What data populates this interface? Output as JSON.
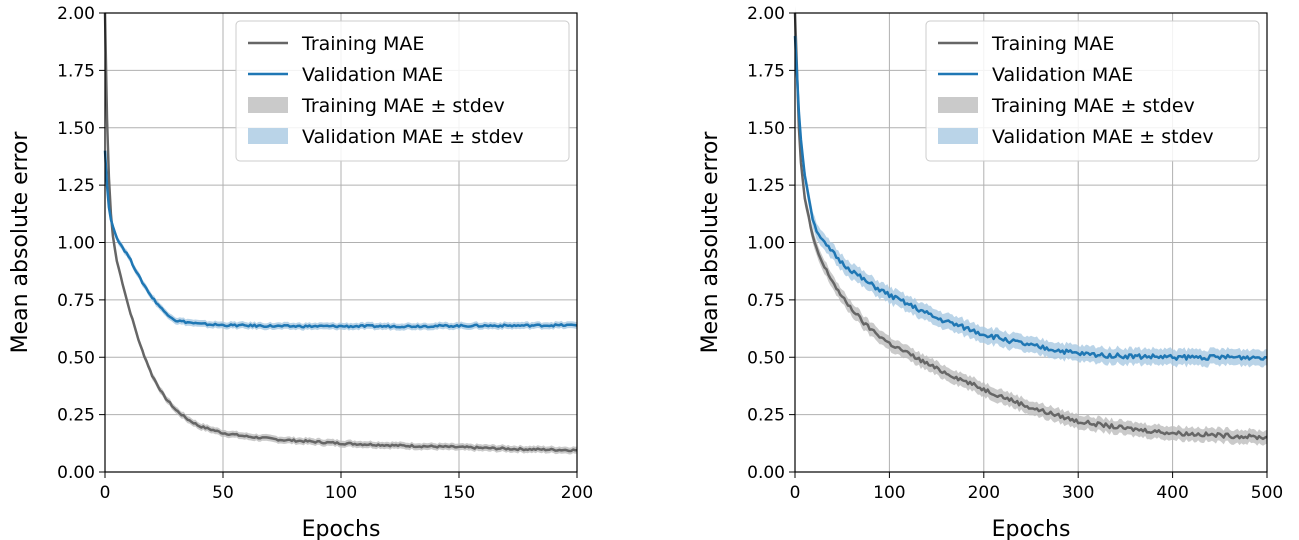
{
  "chart_data": [
    {
      "type": "line",
      "xlabel": "Epochs",
      "ylabel": "Mean absolute error",
      "xlim": [
        0,
        200
      ],
      "ylim": [
        0,
        2.0
      ],
      "xticks": [
        "0",
        "50",
        "100",
        "150",
        "200"
      ],
      "yticks": [
        "0.00",
        "0.25",
        "0.50",
        "0.75",
        "1.00",
        "1.25",
        "1.50",
        "1.75",
        "2.00"
      ],
      "grid": true,
      "legend_position": "top-right",
      "legend": [
        "Training MAE",
        "Validation MAE",
        "Training MAE ± stdev",
        "Validation MAE ± stdev"
      ],
      "series": [
        {
          "name": "Training MAE",
          "color": "#666666",
          "band_color": "#bdbdbd",
          "x": [
            0,
            1,
            2,
            3,
            5,
            8,
            10,
            15,
            20,
            25,
            30,
            35,
            40,
            50,
            60,
            75,
            100,
            125,
            150,
            175,
            200
          ],
          "values": [
            2.0,
            1.45,
            1.2,
            1.05,
            0.92,
            0.8,
            0.72,
            0.55,
            0.42,
            0.33,
            0.27,
            0.23,
            0.2,
            0.17,
            0.155,
            0.14,
            0.125,
            0.115,
            0.108,
            0.1,
            0.095
          ],
          "stdev": 0.015
        },
        {
          "name": "Validation MAE",
          "color": "#1f77b4",
          "band_color": "#a9c9e2",
          "x": [
            0,
            1,
            2,
            3,
            5,
            8,
            10,
            15,
            20,
            25,
            30,
            40,
            50,
            75,
            100,
            125,
            150,
            175,
            200
          ],
          "values": [
            1.4,
            1.22,
            1.12,
            1.08,
            1.02,
            0.97,
            0.94,
            0.84,
            0.76,
            0.7,
            0.66,
            0.645,
            0.64,
            0.635,
            0.635,
            0.635,
            0.637,
            0.638,
            0.64
          ],
          "stdev": 0.015
        }
      ]
    },
    {
      "type": "line",
      "xlabel": "Epochs",
      "ylabel": "Mean absolute error",
      "xlim": [
        0,
        500
      ],
      "ylim": [
        0,
        2.0
      ],
      "xticks": [
        "0",
        "100",
        "200",
        "300",
        "400",
        "500"
      ],
      "yticks": [
        "0.00",
        "0.25",
        "0.50",
        "0.75",
        "1.00",
        "1.25",
        "1.50",
        "1.75",
        "2.00"
      ],
      "grid": true,
      "legend_position": "top-right",
      "legend": [
        "Training MAE",
        "Validation MAE",
        "Training MAE ± stdev",
        "Validation MAE ± stdev"
      ],
      "series": [
        {
          "name": "Training MAE",
          "color": "#666666",
          "band_color": "#bdbdbd",
          "x": [
            0,
            5,
            10,
            20,
            30,
            50,
            75,
            100,
            150,
            200,
            250,
            300,
            350,
            400,
            450,
            500
          ],
          "values": [
            2.0,
            1.4,
            1.2,
            1.0,
            0.9,
            0.76,
            0.64,
            0.56,
            0.45,
            0.36,
            0.28,
            0.22,
            0.19,
            0.17,
            0.16,
            0.15
          ],
          "stdev": 0.03
        },
        {
          "name": "Validation MAE",
          "color": "#1f77b4",
          "band_color": "#a9c9e2",
          "x": [
            0,
            5,
            10,
            20,
            30,
            50,
            75,
            100,
            150,
            200,
            250,
            300,
            350,
            400,
            450,
            500
          ],
          "values": [
            1.9,
            1.5,
            1.3,
            1.08,
            1.0,
            0.91,
            0.83,
            0.77,
            0.67,
            0.6,
            0.55,
            0.515,
            0.505,
            0.5,
            0.5,
            0.5
          ],
          "stdev": 0.035
        }
      ]
    }
  ]
}
